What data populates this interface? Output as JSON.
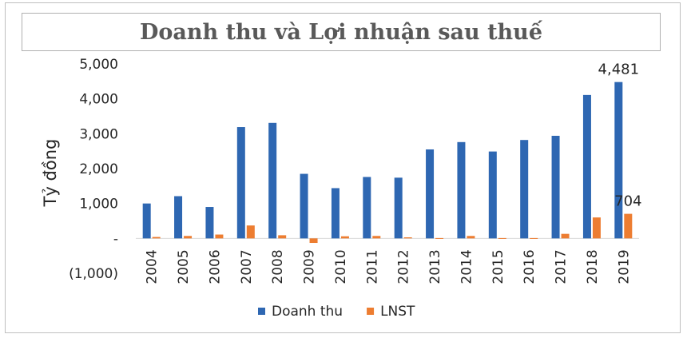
{
  "chart_data": {
    "type": "bar",
    "title": "Doanh thu và Lợi nhuận sau thuế",
    "ylabel": "Tỷ đồng",
    "xlabel": "",
    "ylim": [
      -1000,
      5000
    ],
    "yticks": [
      {
        "value": 5000,
        "label": "5,000"
      },
      {
        "value": 4000,
        "label": "4,000"
      },
      {
        "value": 3000,
        "label": "3,000"
      },
      {
        "value": 2000,
        "label": "2,000"
      },
      {
        "value": 1000,
        "label": "1,000"
      },
      {
        "value": 0,
        "label": "-"
      },
      {
        "value": -1000,
        "label": "(1,000)"
      }
    ],
    "grid": false,
    "legend_position": "bottom",
    "categories": [
      "2004",
      "2005",
      "2006",
      "2007",
      "2008",
      "2009",
      "2010",
      "2011",
      "2012",
      "2013",
      "2014",
      "2015",
      "2016",
      "2017",
      "2018",
      "2019"
    ],
    "series": [
      {
        "name": "Doanh thu",
        "color": "#2e67b2",
        "values": [
          1000,
          1210,
          900,
          3190,
          3310,
          1850,
          1440,
          1760,
          1740,
          2550,
          2760,
          2490,
          2820,
          2940,
          4110,
          4481
        ]
      },
      {
        "name": "LNST",
        "color": "#ed7d31",
        "values": [
          40,
          70,
          110,
          370,
          90,
          -130,
          60,
          70,
          30,
          10,
          70,
          10,
          10,
          130,
          600,
          704
        ]
      }
    ],
    "data_labels": [
      {
        "series": 0,
        "category": "2019",
        "text": "4,481"
      },
      {
        "series": 1,
        "category": "2019",
        "text": "704"
      }
    ]
  }
}
